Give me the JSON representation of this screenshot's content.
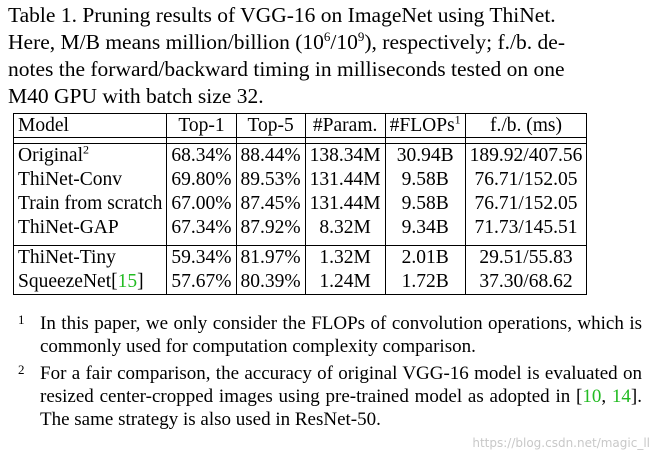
{
  "caption": {
    "line1": "Table 1. Pruning results of VGG-16 on ImageNet using ThiNet.",
    "line2_pre": "Here, M/B means million/billion (10",
    "line2_sup1": "6",
    "line2_mid": "/10",
    "line2_sup2": "9",
    "line2_post": "), respectively; f./b. de-",
    "line3": "notes the forward/backward timing in milliseconds tested on one",
    "line4": "M40 GPU with batch size 32."
  },
  "table": {
    "headers": [
      "Model",
      "Top-1",
      "Top-5",
      "#Param.",
      "#FLOPs",
      "f./b. (ms)"
    ],
    "flops_header_note": "1",
    "group1": [
      {
        "model": "Original",
        "note": "2",
        "top1": "68.34%",
        "top5": "88.44%",
        "params": "138.34M",
        "flops": "30.94B",
        "timing": "189.92/407.56"
      },
      {
        "model": "ThiNet-Conv",
        "note": "",
        "top1": "69.80%",
        "top5": "89.53%",
        "params": "131.44M",
        "flops": "9.58B",
        "timing": "76.71/152.05"
      },
      {
        "model": "Train from scratch",
        "note": "",
        "top1": "67.00%",
        "top5": "87.45%",
        "params": "131.44M",
        "flops": "9.58B",
        "timing": "76.71/152.05"
      },
      {
        "model": "ThiNet-GAP",
        "note": "",
        "top1": "67.34%",
        "top5": "87.92%",
        "params": "8.32M",
        "flops": "9.34B",
        "timing": "71.73/145.51"
      }
    ],
    "group2": [
      {
        "model": "ThiNet-Tiny",
        "cite": "",
        "top1": "59.34%",
        "top5": "81.97%",
        "params": "1.32M",
        "flops": "2.01B",
        "timing": "29.51/55.83"
      },
      {
        "model": "SqueezeNet",
        "cite": "15",
        "top1": "57.67%",
        "top5": "80.39%",
        "params": "1.24M",
        "flops": "1.72B",
        "timing": "37.30/68.62"
      }
    ]
  },
  "footnotes": [
    {
      "mark": "1",
      "text": "In this paper, we only consider the FLOPs of convolution operations, which is commonly used for computation complexity comparison."
    },
    {
      "mark": "2",
      "text_pre": "For a fair comparison, the accuracy of original VGG-16 model is evaluated on resized center-cropped images using pre-trained model as adopted in [",
      "cite_a": "10",
      "sep": ", ",
      "cite_b": "14",
      "text_post": "]. The same strategy is also used in ResNet-50."
    }
  ],
  "watermark": "https://blog.csdn.net/magic_ll",
  "colors": {
    "citation": "#22bb22",
    "watermark": "#c8c8c8"
  }
}
